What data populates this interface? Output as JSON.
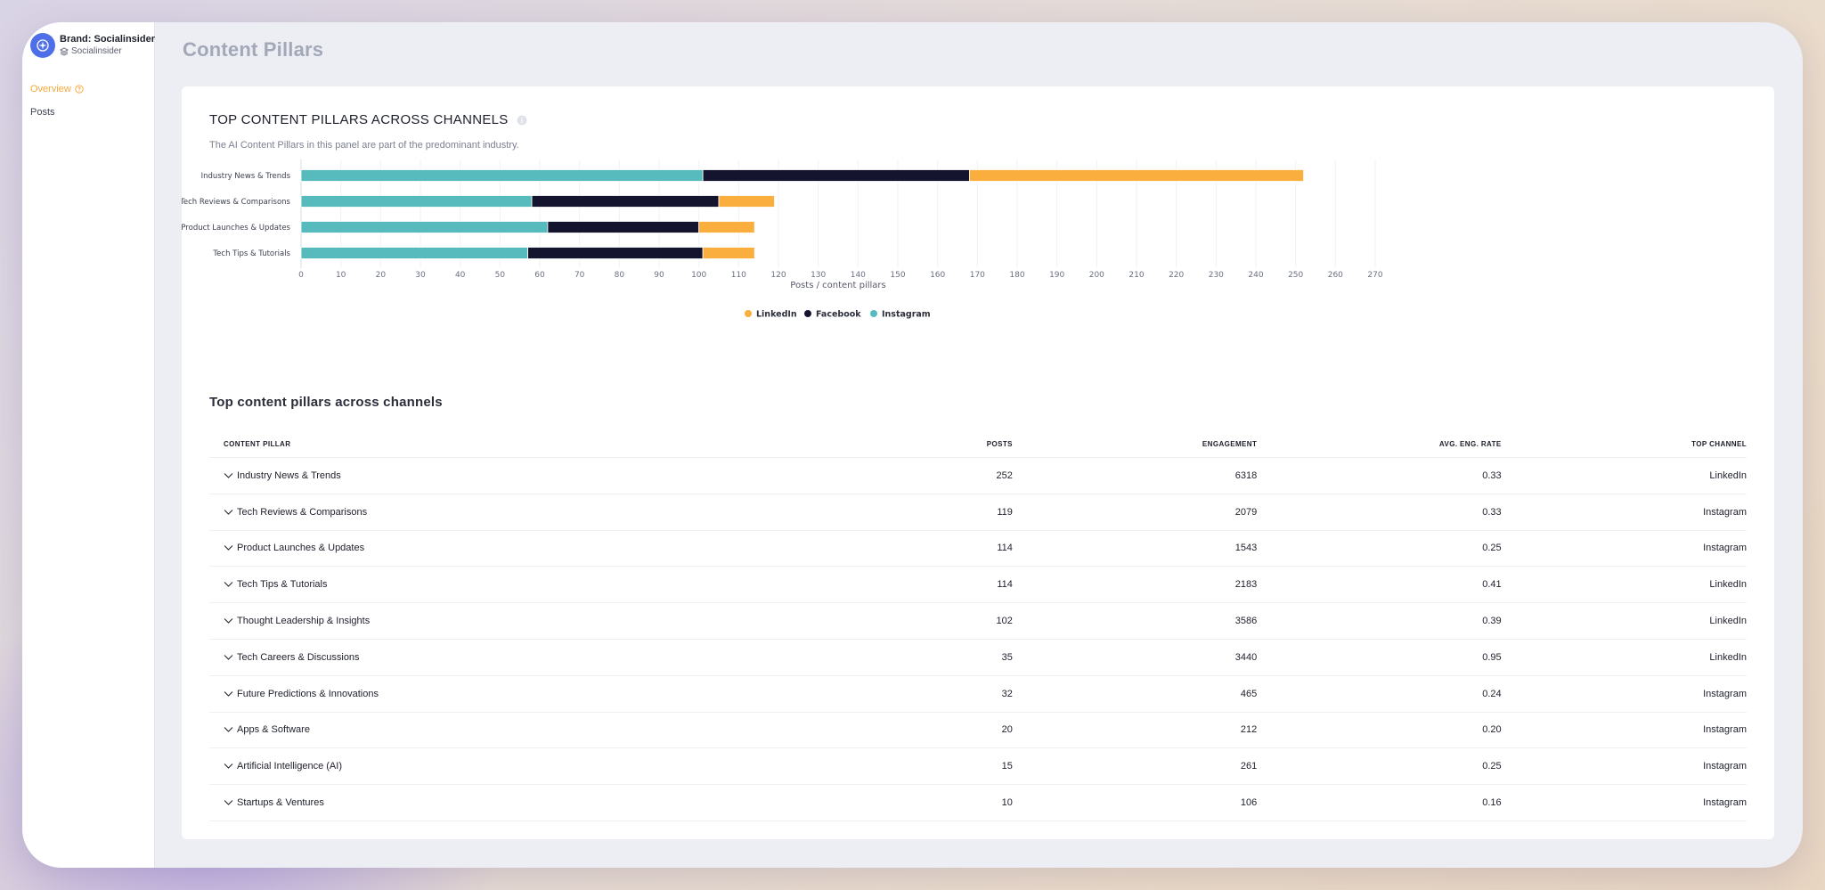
{
  "brand": {
    "name": "Brand: Socialinsider",
    "sub": "Socialinsider",
    "logo_icon": "compass-icon",
    "sub_icon": "layers-icon"
  },
  "nav": {
    "overview": "Overview",
    "posts": "Posts"
  },
  "page": {
    "title": "Content Pillars"
  },
  "panel": {
    "title": "TOP CONTENT PILLARS ACROSS CHANNELS",
    "description": "The AI Content Pillars in this panel are part of the predominant industry."
  },
  "colors": {
    "linkedin": "#f9ae3d",
    "facebook": "#15142f",
    "instagram": "#57bbbd",
    "accent": "#f4a83a"
  },
  "chart_data": {
    "type": "bar",
    "orientation": "horizontal",
    "stacked": true,
    "categories": [
      "Industry News & Trends",
      "Tech Reviews & Comparisons",
      "Product Launches & Updates",
      "Tech Tips & Tutorials"
    ],
    "series": [
      {
        "name": "Instagram",
        "values": [
          101,
          58,
          62,
          57
        ]
      },
      {
        "name": "Facebook",
        "values": [
          67,
          47,
          38,
          44
        ]
      },
      {
        "name": "LinkedIn",
        "values": [
          84,
          14,
          14,
          13
        ]
      }
    ],
    "xlabel": "Posts / content pillars",
    "xlim": [
      0,
      270
    ],
    "xticks": [
      "0",
      "10",
      "20",
      "30",
      "40",
      "50",
      "60",
      "70",
      "80",
      "90",
      "100",
      "110",
      "120",
      "130",
      "140",
      "150",
      "160",
      "170",
      "180",
      "190",
      "200",
      "210",
      "220",
      "230",
      "240",
      "250",
      "260",
      "270"
    ],
    "grid": true,
    "legend": [
      "LinkedIn",
      "Facebook",
      "Instagram"
    ],
    "legend_position": "bottom"
  },
  "table": {
    "title": "Top content pillars across channels",
    "headers": [
      "CONTENT PILLAR",
      "POSTS",
      "ENGAGEMENT",
      "AVG. ENG. RATE",
      "TOP CHANNEL"
    ],
    "rows": [
      [
        "Industry News & Trends",
        "252",
        "6318",
        "0.33",
        "LinkedIn"
      ],
      [
        "Tech Reviews & Comparisons",
        "119",
        "2079",
        "0.33",
        "Instagram"
      ],
      [
        "Product Launches & Updates",
        "114",
        "1543",
        "0.25",
        "Instagram"
      ],
      [
        "Tech Tips & Tutorials",
        "114",
        "2183",
        "0.41",
        "LinkedIn"
      ],
      [
        "Thought Leadership & Insights",
        "102",
        "3586",
        "0.39",
        "LinkedIn"
      ],
      [
        "Tech Careers & Discussions",
        "35",
        "3440",
        "0.95",
        "LinkedIn"
      ],
      [
        "Future Predictions & Innovations",
        "32",
        "465",
        "0.24",
        "Instagram"
      ],
      [
        "Apps & Software",
        "20",
        "212",
        "0.20",
        "Instagram"
      ],
      [
        "Artificial Intelligence (AI)",
        "15",
        "261",
        "0.25",
        "Instagram"
      ],
      [
        "Startups & Ventures",
        "10",
        "106",
        "0.16",
        "Instagram"
      ]
    ]
  }
}
